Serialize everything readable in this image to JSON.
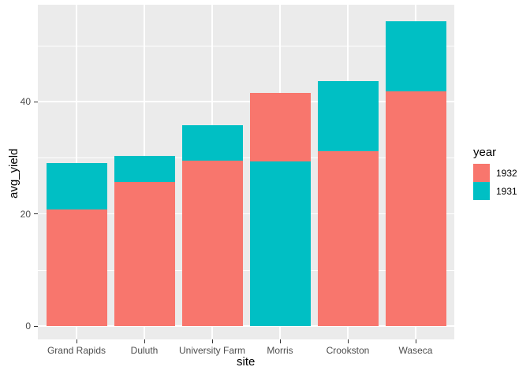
{
  "figure": {
    "kind": "ggplot-bar-chart",
    "background": "#FFFFFF",
    "panel_background": "#EBEBEB",
    "gridline_color": "#FFFFFF"
  },
  "y_axis": {
    "title": "avg_yield",
    "tick_labels": [
      "0",
      "20",
      "40"
    ],
    "ticks": [
      0,
      20,
      40
    ],
    "minor_ticks": [
      10,
      30,
      50
    ]
  },
  "x_axis": {
    "title": "site",
    "tick_labels": [
      "Grand Rapids",
      "Duluth",
      "University Farm",
      "Morris",
      "Crookston",
      "Waseca"
    ]
  },
  "legend": {
    "title": "year",
    "entries": [
      {
        "label": "1932",
        "color": "#F8766D"
      },
      {
        "label": "1931",
        "color": "#00BFC4"
      }
    ]
  },
  "chart_data": {
    "type": "bar",
    "position": "identity-overlap",
    "title": "",
    "xlabel": "site",
    "ylabel": "avg_yield",
    "categories": [
      "Grand Rapids",
      "Duluth",
      "University Farm",
      "Morris",
      "Crookston",
      "Waseca"
    ],
    "series": [
      {
        "name": "1932",
        "color": "#F8766D",
        "values": [
          20.81,
          25.7,
          29.51,
          41.51,
          31.18,
          41.87
        ]
      },
      {
        "name": "1931",
        "color": "#00BFC4",
        "values": [
          29.05,
          30.29,
          35.82,
          29.29,
          43.66,
          54.34
        ]
      }
    ],
    "y_ticks": [
      0,
      20,
      40
    ],
    "y_minor_ticks": [
      10,
      30,
      50
    ],
    "ylim": [
      -2.7,
      57.3
    ],
    "grid": true,
    "legend_position": "right",
    "note": "smaller bar of each pair is drawn in front; both start at 0"
  }
}
